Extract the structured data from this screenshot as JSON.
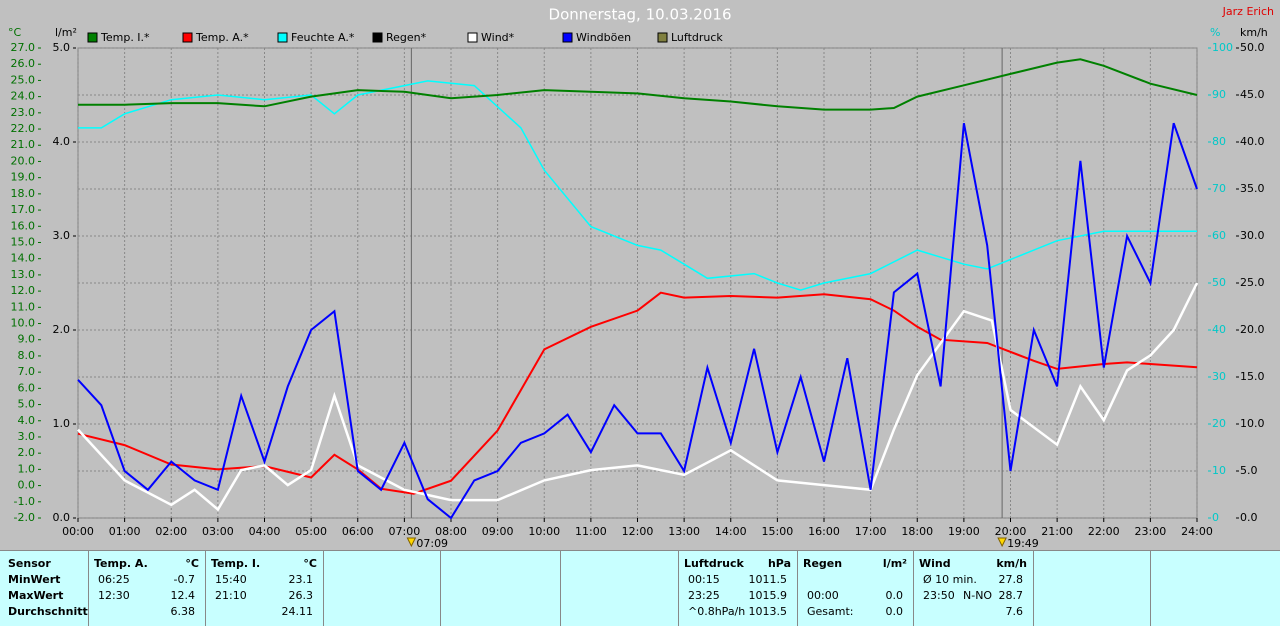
{
  "chart_data": {
    "type": "line",
    "title": "Donnerstag, 10.03.2016",
    "author": "Jarz Erich",
    "xlim": [
      0,
      24
    ],
    "xticks": [
      {
        "value": 0,
        "label": "00:00"
      },
      {
        "value": 1,
        "label": "01:00"
      },
      {
        "value": 2,
        "label": "02:00"
      },
      {
        "value": 3,
        "label": "03:00"
      },
      {
        "value": 4,
        "label": "04:00"
      },
      {
        "value": 5,
        "label": "05:00"
      },
      {
        "value": 6,
        "label": "06:00"
      },
      {
        "value": 7,
        "label": "07:00"
      },
      {
        "value": 8,
        "label": "08:00"
      },
      {
        "value": 9,
        "label": "09:00"
      },
      {
        "value": 10,
        "label": "10:00"
      },
      {
        "value": 11,
        "label": "11:00"
      },
      {
        "value": 12,
        "label": "12:00"
      },
      {
        "value": 13,
        "label": "13:00"
      },
      {
        "value": 14,
        "label": "14:00"
      },
      {
        "value": 15,
        "label": "15:00"
      },
      {
        "value": 16,
        "label": "16:00"
      },
      {
        "value": 17,
        "label": "17:00"
      },
      {
        "value": 18,
        "label": "18:00"
      },
      {
        "value": 19,
        "label": "19:00"
      },
      {
        "value": 20,
        "label": "20:00"
      },
      {
        "value": 21,
        "label": "21:00"
      },
      {
        "value": 22,
        "label": "22:00"
      },
      {
        "value": 23,
        "label": "23:00"
      },
      {
        "value": 24,
        "label": "24:00"
      }
    ],
    "sun": [
      {
        "value": 7.15,
        "label": "07:09"
      },
      {
        "value": 19.82,
        "label": "19:49"
      }
    ],
    "axes": {
      "temp": {
        "label": "°C",
        "color": "#007000",
        "lim": [
          -2,
          27
        ],
        "ticks": [
          {
            "value": -2,
            "label": "-2.0"
          },
          {
            "value": -1,
            "label": "-1.0"
          },
          {
            "value": 0,
            "label": "0.0"
          },
          {
            "value": 1,
            "label": "1.0"
          },
          {
            "value": 2,
            "label": "2.0"
          },
          {
            "value": 3,
            "label": "3.0"
          },
          {
            "value": 4,
            "label": "4.0"
          },
          {
            "value": 5,
            "label": "5.0"
          },
          {
            "value": 6,
            "label": "6.0"
          },
          {
            "value": 7,
            "label": "7.0"
          },
          {
            "value": 8,
            "label": "8.0"
          },
          {
            "value": 9,
            "label": "9.0"
          },
          {
            "value": 10,
            "label": "10.0"
          },
          {
            "value": 11,
            "label": "11.0"
          },
          {
            "value": 12,
            "label": "12.0"
          },
          {
            "value": 13,
            "label": "13.0"
          },
          {
            "value": 14,
            "label": "14.0"
          },
          {
            "value": 15,
            "label": "15.0"
          },
          {
            "value": 16,
            "label": "16.0"
          },
          {
            "value": 17,
            "label": "17.0"
          },
          {
            "value": 18,
            "label": "18.0"
          },
          {
            "value": 19,
            "label": "19.0"
          },
          {
            "value": 20,
            "label": "20.0"
          },
          {
            "value": 21,
            "label": "21.0"
          },
          {
            "value": 22,
            "label": "22.0"
          },
          {
            "value": 23,
            "label": "23.0"
          },
          {
            "value": 24,
            "label": "24.0"
          },
          {
            "value": 25,
            "label": "25.0"
          },
          {
            "value": 26,
            "label": "26.0"
          },
          {
            "value": 27,
            "label": "27.0"
          }
        ]
      },
      "rain": {
        "label": "l/m²",
        "color": "#000000",
        "lim": [
          0,
          5
        ],
        "ticks": [
          {
            "value": 0,
            "label": "0.0"
          },
          {
            "value": 1,
            "label": "1.0"
          },
          {
            "value": 2,
            "label": "2.0"
          },
          {
            "value": 3,
            "label": "3.0"
          },
          {
            "value": 4,
            "label": "4.0"
          },
          {
            "value": 5,
            "label": "5.0"
          }
        ]
      },
      "hum": {
        "label": "%",
        "color": "#00c8c8",
        "lim": [
          0,
          100
        ],
        "ticks": [
          0,
          10,
          20,
          30,
          40,
          50,
          60,
          70,
          80,
          90,
          100
        ]
      },
      "wind": {
        "label": "km/h",
        "color": "#000000",
        "lim": [
          0,
          50
        ],
        "ticks": [
          {
            "value": 0,
            "label": "0.0"
          },
          {
            "value": 5,
            "label": "5.0"
          },
          {
            "value": 10,
            "label": "10.0"
          },
          {
            "value": 15,
            "label": "15.0"
          },
          {
            "value": 20,
            "label": "20.0"
          },
          {
            "value": 25,
            "label": "25.0"
          },
          {
            "value": 30,
            "label": "30.0"
          },
          {
            "value": 35,
            "label": "35.0"
          },
          {
            "value": 40,
            "label": "40.0"
          },
          {
            "value": 45,
            "label": "45.0"
          },
          {
            "value": 50,
            "label": "50.0"
          }
        ]
      }
    },
    "legend": [
      {
        "name": "Temp. I.*",
        "color": "#008000"
      },
      {
        "name": "Temp. A.*",
        "color": "#ff0000"
      },
      {
        "name": "Feuchte A.*",
        "color": "#00ffff"
      },
      {
        "name": "Regen*",
        "color": "#000000"
      },
      {
        "name": "Wind*",
        "color": "#ffffff"
      },
      {
        "name": "Windböen",
        "color": "#0000ff"
      },
      {
        "name": "Luftdruck",
        "color": "#808040"
      }
    ],
    "series": [
      {
        "legend": 2,
        "axis": "hum",
        "color": "#00ffff",
        "width": 1.5,
        "x": [
          0,
          0.5,
          1,
          2,
          3,
          4,
          5,
          5.5,
          6,
          7,
          7.5,
          8.5,
          9.5,
          10,
          11,
          12,
          12.5,
          13,
          13.5,
          14.5,
          15,
          15.5,
          16,
          17,
          18,
          19,
          19.5,
          20,
          21,
          22,
          23,
          24
        ],
        "values": [
          83,
          83,
          86,
          89,
          90,
          89,
          90,
          86,
          90,
          92,
          93,
          92,
          83,
          74,
          62,
          58,
          57,
          54,
          51,
          52,
          50,
          48.5,
          50,
          52,
          57,
          54,
          53,
          55,
          59,
          61,
          61,
          61
        ]
      },
      {
        "legend": 0,
        "axis": "temp",
        "color": "#008000",
        "width": 2,
        "x": [
          0,
          1,
          2,
          3,
          4,
          5,
          6,
          7,
          8,
          9,
          10,
          11,
          12,
          13,
          14,
          15,
          16,
          17,
          17.5,
          18,
          19,
          20,
          21,
          21.5,
          22,
          23,
          24
        ],
        "values": [
          23.5,
          23.5,
          23.6,
          23.6,
          23.4,
          24.0,
          24.4,
          24.3,
          23.9,
          24.1,
          24.4,
          24.3,
          24.2,
          23.9,
          23.7,
          23.4,
          23.2,
          23.2,
          23.3,
          24.0,
          24.7,
          25.4,
          26.1,
          26.3,
          25.9,
          24.8,
          24.1
        ]
      },
      {
        "legend": 1,
        "axis": "temp",
        "color": "#ff0000",
        "width": 2,
        "x": [
          0,
          1,
          2,
          3,
          4,
          5,
          5.5,
          6,
          6.5,
          7.2,
          8,
          9,
          10,
          11,
          12,
          12.5,
          13,
          14,
          15,
          16,
          17,
          17.5,
          18,
          18.5,
          19.5,
          20.5,
          21,
          22,
          22.5,
          24
        ],
        "values": [
          3.2,
          2.5,
          1.3,
          1.0,
          1.2,
          0.5,
          1.9,
          1.0,
          -0.2,
          -0.5,
          0.3,
          3.4,
          8.4,
          9.8,
          10.8,
          11.9,
          11.6,
          11.7,
          11.6,
          11.8,
          11.5,
          10.8,
          9.8,
          9.0,
          8.8,
          7.7,
          7.2,
          7.5,
          7.6,
          7.3
        ]
      },
      {
        "legend": 4,
        "axis": "wind",
        "color": "#ffffff",
        "width": 2.5,
        "x": [
          0,
          1,
          2,
          2.5,
          3,
          3.5,
          4,
          4.5,
          5,
          5.5,
          6,
          7,
          8,
          9,
          10,
          11,
          12,
          13,
          14,
          15,
          16,
          17,
          17.5,
          18,
          19,
          19.6,
          20,
          21,
          21.5,
          22,
          22.5,
          23,
          23.5,
          24
        ],
        "values": [
          9.4,
          4,
          1.4,
          3,
          0.9,
          5.1,
          5.6,
          3.5,
          5.1,
          13,
          5.6,
          3,
          1.9,
          1.9,
          4,
          5.1,
          5.6,
          4.6,
          7.2,
          4,
          3.5,
          3,
          9.4,
          15.2,
          22,
          21,
          11.5,
          7.8,
          14,
          10.4,
          15.7,
          17.3,
          20,
          25
        ]
      },
      {
        "legend": 5,
        "axis": "wind",
        "color": "#0000ff",
        "width": 2,
        "x": [
          0,
          0.5,
          1,
          1.5,
          2,
          2.5,
          3,
          3.5,
          4,
          4.5,
          5,
          5.5,
          6,
          6.5,
          7,
          7.5,
          8,
          8.5,
          9,
          9.5,
          10,
          10.5,
          11,
          11.5,
          12,
          12.5,
          13,
          13.5,
          14,
          14.5,
          15,
          15.5,
          16,
          16.5,
          17,
          17.5,
          18,
          18.5,
          19,
          19.5,
          20,
          20.5,
          21,
          21.5,
          22,
          22.5,
          23,
          23.5,
          24
        ],
        "values": [
          14.7,
          12,
          5,
          3,
          6,
          4,
          3,
          13,
          6,
          14,
          20,
          22,
          5,
          3,
          8,
          2,
          0,
          4,
          5,
          8,
          9,
          11,
          7,
          12,
          9,
          9,
          5,
          16,
          8,
          18,
          7,
          15,
          6,
          17,
          3,
          24,
          26,
          14,
          42,
          29,
          5,
          20,
          14,
          38,
          16,
          30,
          25,
          42,
          35
        ]
      }
    ],
    "stats": {
      "labels": [
        "Sensor",
        "MinWert",
        "MaxWert",
        "Durchschnitt"
      ],
      "groups": [
        {
          "title": "Temp. A.",
          "unit": "°C",
          "rows": [
            {
              "time": "06:25",
              "value": "-0.7"
            },
            {
              "time": "12:30",
              "value": "12.4"
            },
            {
              "value": "6.38"
            }
          ]
        },
        {
          "title": "Temp. I.",
          "unit": "°C",
          "rows": [
            {
              "time": "15:40",
              "value": "23.1"
            },
            {
              "time": "21:10",
              "value": "26.3"
            },
            {
              "value": "24.11"
            }
          ]
        },
        {
          "title": "Luftdruck",
          "unit": "hPa",
          "rows": [
            {
              "time": "00:15",
              "value": "1011.5"
            },
            {
              "time": "23:25",
              "value": "1015.9"
            },
            {
              "time": "^0.8hPa/h",
              "value": "1013.5"
            }
          ]
        },
        {
          "title": "Regen",
          "unit": "l/m²",
          "rows": [
            {
              "time": "00:00",
              "value": "0.0"
            },
            {
              "time": "Gesamt:",
              "value": "0.0"
            }
          ]
        },
        {
          "title": "Wind",
          "unit": "km/h",
          "rows": [
            {
              "time": "Ø 10 min.",
              "value": "27.8"
            },
            {
              "time": "23:50",
              "mid": "N-NO",
              "value": "28.7"
            },
            {
              "value": "7.6"
            }
          ]
        }
      ]
    }
  }
}
